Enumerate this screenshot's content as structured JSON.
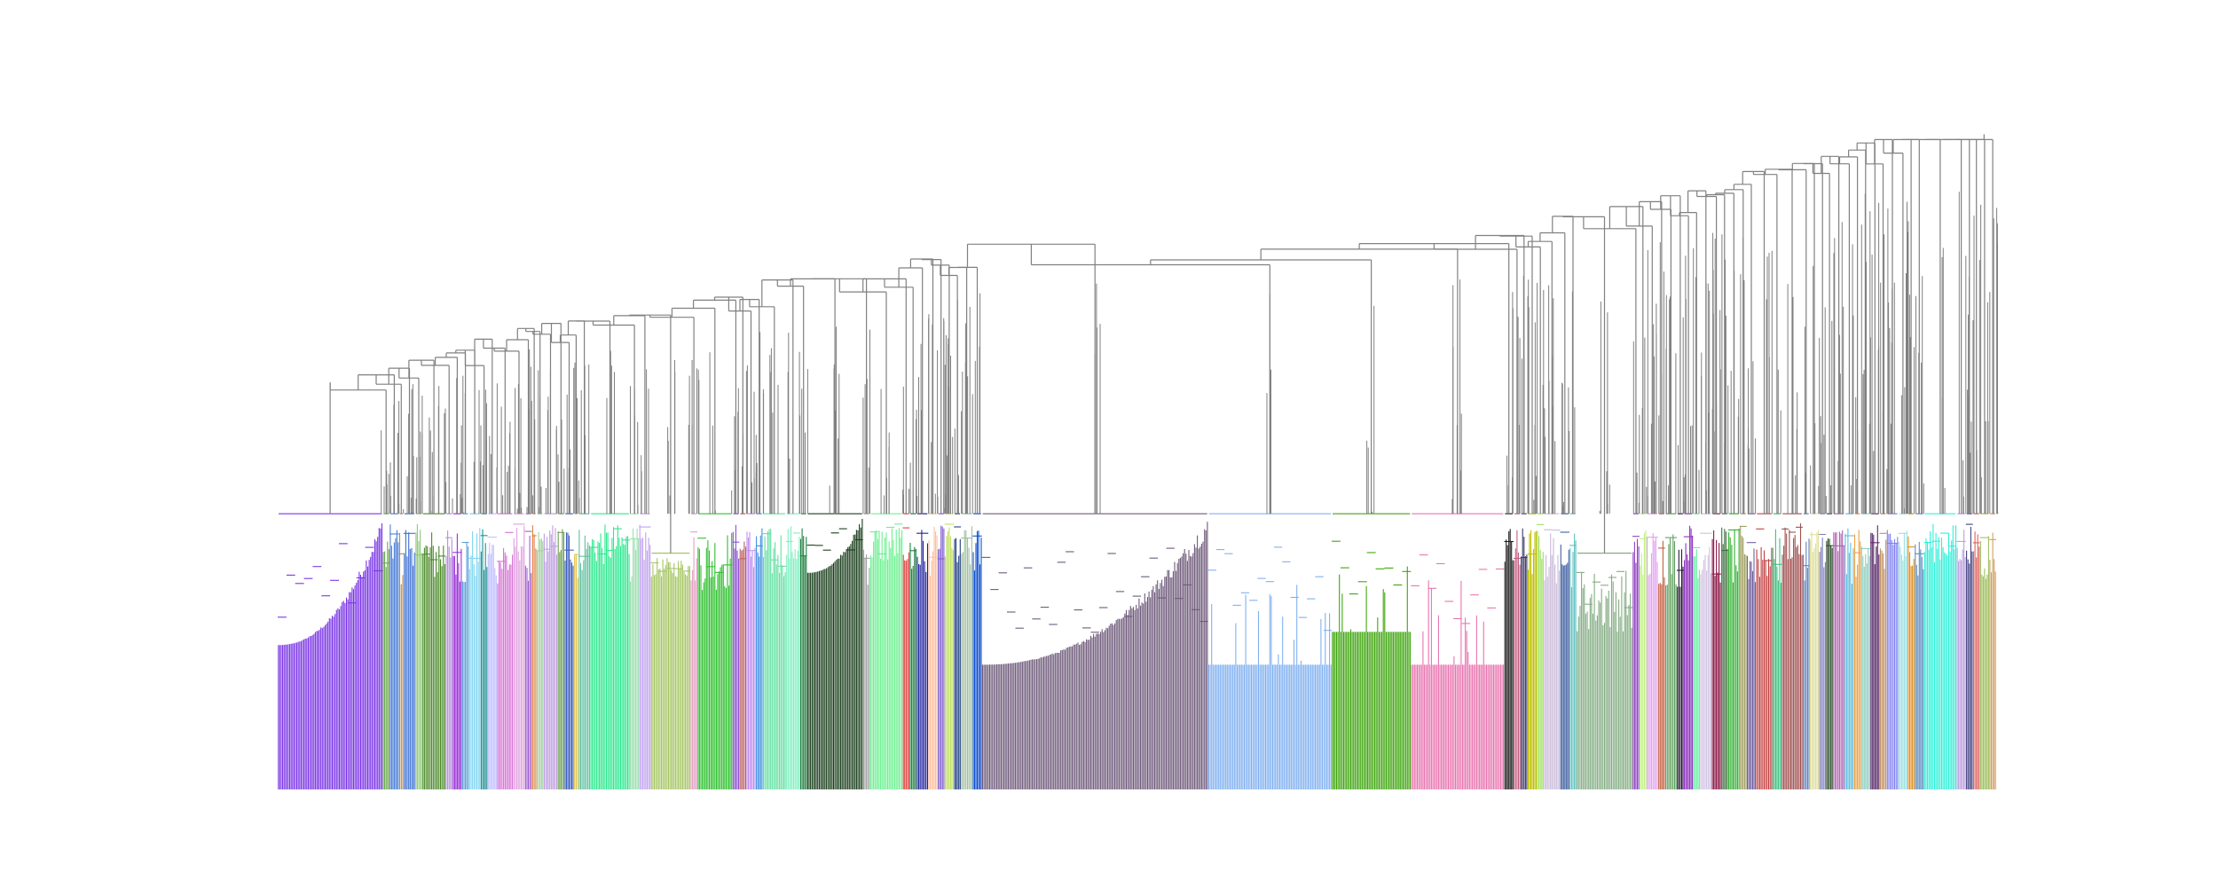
{
  "figure": {
    "kind": "dendrogram",
    "orientation": "vertical",
    "axes_visible": false,
    "title": "",
    "background": "#ffffff",
    "link_above_threshold_color": "#808080",
    "color_threshold": 0.42,
    "height_range": [
      0,
      1.0
    ]
  },
  "chart_data": {
    "type": "dendrogram",
    "axes_visible": false,
    "grid": false,
    "ylim": [
      0,
      1.0
    ],
    "leaf_count_estimate": 2400,
    "clusters": [
      {
        "color": "#7b35e6",
        "width": 90,
        "merge_height": 0.42,
        "min_height": 0.22,
        "style": "staircase"
      },
      {
        "color": "#6aa84f",
        "width": 6
      },
      {
        "color": "#4f7fd6",
        "width": 8
      },
      {
        "color": "#b08c5b",
        "width": 4
      },
      {
        "color": "#3c6fd1",
        "width": 10
      },
      {
        "color": "#8ec97a",
        "width": 6
      },
      {
        "color": "#4c8a2a",
        "width": 20,
        "merge_height": 0.42
      },
      {
        "color": "#b48fd8",
        "width": 6
      },
      {
        "color": "#9b30d9",
        "width": 8
      },
      {
        "color": "#5aa0d8",
        "width": 6
      },
      {
        "color": "#7fd6f0",
        "width": 10
      },
      {
        "color": "#1f8f8f",
        "width": 6
      },
      {
        "color": "#c0c0ff",
        "width": 8
      },
      {
        "color": "#d66fd6",
        "width": 14
      },
      {
        "color": "#e0a0e0",
        "width": 10
      },
      {
        "color": "#a060d0",
        "width": 6
      },
      {
        "color": "#e08040",
        "width": 4
      },
      {
        "color": "#a0d0a0",
        "width": 6
      },
      {
        "color": "#bfa0e0",
        "width": 12
      },
      {
        "color": "#6fa050",
        "width": 6
      },
      {
        "color": "#4060c0",
        "width": 8
      },
      {
        "color": "#e0c040",
        "width": 4
      },
      {
        "color": "#60c0a0",
        "width": 10
      },
      {
        "color": "#2fe88f",
        "width": 34,
        "merge_height": 0.42
      },
      {
        "color": "#9ee0b0",
        "width": 8
      },
      {
        "color": "#c0a0f0",
        "width": 10
      },
      {
        "color": "#a6c564",
        "width": 34,
        "merge_height": 0.36
      },
      {
        "color": "#e0a0c0",
        "width": 6
      },
      {
        "color": "#30c030",
        "width": 30,
        "merge_height": 0.42
      },
      {
        "color": "#8a4fd0",
        "width": 6
      },
      {
        "color": "#c06060",
        "width": 6
      },
      {
        "color": "#c090f0",
        "width": 8
      },
      {
        "color": "#4090e0",
        "width": 6
      },
      {
        "color": "#60e0a0",
        "width": 20
      },
      {
        "color": "#80f0c0",
        "width": 12
      },
      {
        "color": "#208040",
        "width": 6
      },
      {
        "color": "#1a3f1c",
        "width": 48,
        "merge_height": 0.42,
        "style": "staircase"
      },
      {
        "color": "#a0a0a0",
        "width": 6
      },
      {
        "color": "#6cf090",
        "width": 28,
        "merge_height": 0.42
      },
      {
        "color": "#e04040",
        "width": 6
      },
      {
        "color": "#208040",
        "width": 6
      },
      {
        "color": "#2020a0",
        "width": 10
      },
      {
        "color": "#ffc0a0",
        "width": 8
      },
      {
        "color": "#8060d0",
        "width": 6
      },
      {
        "color": "#c0e060",
        "width": 8
      },
      {
        "color": "#204080",
        "width": 6
      },
      {
        "color": "#a0c0a0",
        "width": 10
      },
      {
        "color": "#1050d0",
        "width": 8
      },
      {
        "color": "#6e5a7a",
        "width": 194,
        "merge_height": 0.42,
        "min_height": 0.19,
        "style": "staircase"
      },
      {
        "color": "#80b0f0",
        "width": 106,
        "merge_height": 0.42,
        "min_height": 0.19,
        "style": "block"
      },
      {
        "color": "#3fa60f",
        "width": 68,
        "merge_height": 0.42,
        "min_height": 0.24,
        "style": "block"
      },
      {
        "color": "#e875b0",
        "width": 80,
        "merge_height": 0.42,
        "min_height": 0.19,
        "style": "block"
      },
      {
        "color": "#202020",
        "width": 8
      },
      {
        "color": "#c06080",
        "width": 6
      },
      {
        "color": "#3a3a6a",
        "width": 6
      },
      {
        "color": "#c0c000",
        "width": 8
      },
      {
        "color": "#a0e060",
        "width": 6
      },
      {
        "color": "#c8b8d8",
        "width": 14
      },
      {
        "color": "#4060a0",
        "width": 8
      },
      {
        "color": "#60c0c0",
        "width": 6
      },
      {
        "color": "#84ac84",
        "width": 48,
        "merge_height": 0.36,
        "min_height": 0.24
      },
      {
        "color": "#9040c0",
        "width": 6
      },
      {
        "color": "#c0f080",
        "width": 6
      },
      {
        "color": "#e0a0f0",
        "width": 10
      },
      {
        "color": "#c06040",
        "width": 6
      },
      {
        "color": "#60a060",
        "width": 10
      },
      {
        "color": "#2a1a3a",
        "width": 6
      },
      {
        "color": "#9030c0",
        "width": 8
      },
      {
        "color": "#60f0a0",
        "width": 6
      },
      {
        "color": "#d0c0e0",
        "width": 10
      },
      {
        "color": "#8a1a4a",
        "width": 8
      },
      {
        "color": "#407040",
        "width": 6
      },
      {
        "color": "#30b030",
        "width": 10
      },
      {
        "color": "#a0a060",
        "width": 6
      },
      {
        "color": "#7060a0",
        "width": 8
      },
      {
        "color": "#c04040",
        "width": 14
      },
      {
        "color": "#40c080",
        "width": 8
      },
      {
        "color": "#a05050",
        "width": 18
      },
      {
        "color": "#6080c0",
        "width": 6
      },
      {
        "color": "#e0e0a0",
        "width": 8
      },
      {
        "color": "#8080c0",
        "width": 6
      },
      {
        "color": "#2a4a2a",
        "width": 6
      },
      {
        "color": "#b060b0",
        "width": 10
      },
      {
        "color": "#60c0e0",
        "width": 8
      },
      {
        "color": "#f0a040",
        "width": 6
      },
      {
        "color": "#90d0c0",
        "width": 8
      },
      {
        "color": "#5a2a6a",
        "width": 8
      },
      {
        "color": "#c09060",
        "width": 6
      },
      {
        "color": "#8080f0",
        "width": 10
      },
      {
        "color": "#a0e0e0",
        "width": 8
      },
      {
        "color": "#e09020",
        "width": 6
      },
      {
        "color": "#6090c0",
        "width": 8
      },
      {
        "color": "#30f0d8",
        "width": 28,
        "merge_height": 0.42
      },
      {
        "color": "#c0a0e0",
        "width": 8
      },
      {
        "color": "#404080",
        "width": 6
      },
      {
        "color": "#e06060",
        "width": 6
      },
      {
        "color": "#a0c060",
        "width": 8
      },
      {
        "color": "#d0a060",
        "width": 6
      }
    ]
  }
}
